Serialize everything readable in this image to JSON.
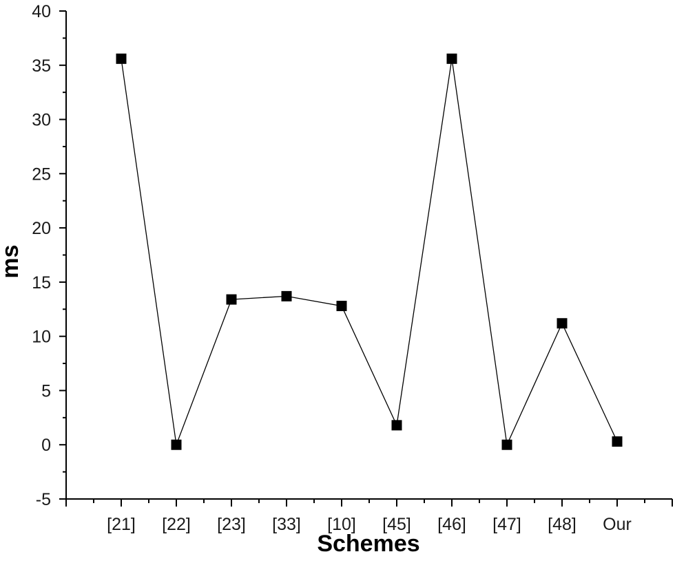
{
  "chart_data": {
    "type": "line",
    "title": "",
    "xlabel": "Schemes",
    "ylabel": "ms",
    "categories": [
      "[21]",
      "[22]",
      "[23]",
      "[33]",
      "[10]",
      "[45]",
      "[46]",
      "[47]",
      "[48]",
      "Our"
    ],
    "series": [
      {
        "values": [
          35.6,
          0.0,
          13.4,
          13.7,
          12.8,
          1.8,
          35.6,
          0.0,
          11.2,
          0.3
        ],
        "marker": "square",
        "color": "#000000"
      }
    ],
    "ylim": [
      -5,
      40
    ],
    "yticks": [
      -5,
      0,
      5,
      10,
      15,
      20,
      25,
      30,
      35,
      40
    ],
    "y_minor_step": 2.5,
    "grid": false,
    "legend": "none"
  }
}
